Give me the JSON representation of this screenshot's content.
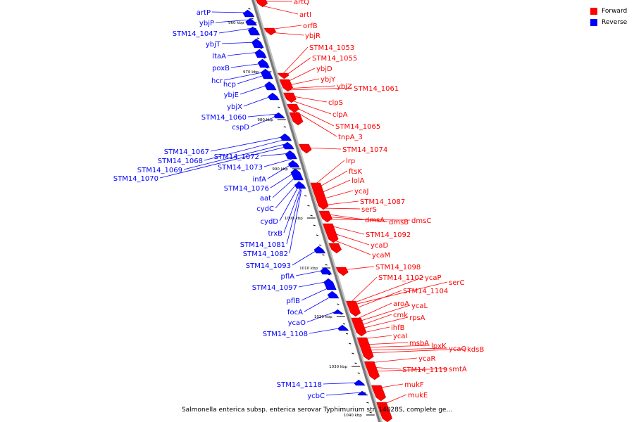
{
  "legend": {
    "forward": {
      "label": "Forward",
      "color": "#ff0000"
    },
    "reverse": {
      "label": "Reverse",
      "color": "#0000ff"
    }
  },
  "caption": "Salmonella enterica subsp. enterica serovar Typhimurium str. 14028S, complete ge...",
  "scale_labels": [
    "960 kbp",
    "970 kbp",
    "980 kbp",
    "990 kbp",
    "1000 kbp",
    "1010 kbp",
    "1020 kbp",
    "1030 kbp",
    "1040 kbp"
  ],
  "forward_genes": [
    "artQ",
    "artI",
    "orfB",
    "ybjR",
    "STM14_1053",
    "STM14_1055",
    "ybjD",
    "ybjY",
    "ybjZ",
    "STM14_1061",
    "clpS",
    "clpA",
    "STM14_1065",
    "tnpA_3",
    "STM14_1074",
    "lrp",
    "ftsK",
    "lolA",
    "ycaJ",
    "STM14_1087",
    "serS",
    "dmsA",
    "dmsB",
    "dmsC",
    "STM14_1092",
    "ycaD",
    "ycaM",
    "STM14_1098",
    "STM14_1102",
    "ycaP",
    "serC",
    "STM14_1104",
    "aroA",
    "ycaL",
    "cmk",
    "rpsA",
    "ihfB",
    "ycaI",
    "msbA",
    "lpxK",
    "ycaQ",
    "kdsB",
    "ycaR",
    "STM14_1119",
    "smtA",
    "mukF",
    "mukE"
  ],
  "reverse_genes": [
    "artP",
    "ybjP",
    "STM14_1047",
    "ybjT",
    "ltaA",
    "poxB",
    "hcp",
    "hcr",
    "ybjE",
    "ybjX",
    "STM14_1060",
    "cspD",
    "STM14_1067",
    "STM14_1068",
    "STM14_1069",
    "STM14_1070",
    "STM14_1072",
    "STM14_1073",
    "infA",
    "STM14_1076",
    "aat",
    "cydC",
    "cydD",
    "trxB",
    "STM14_1081",
    "STM14_1082",
    "STM14_1093",
    "pflA",
    "STM14_1097",
    "pflB",
    "focA",
    "ycaO",
    "STM14_1108",
    "STM14_1118",
    "ycbC"
  ]
}
